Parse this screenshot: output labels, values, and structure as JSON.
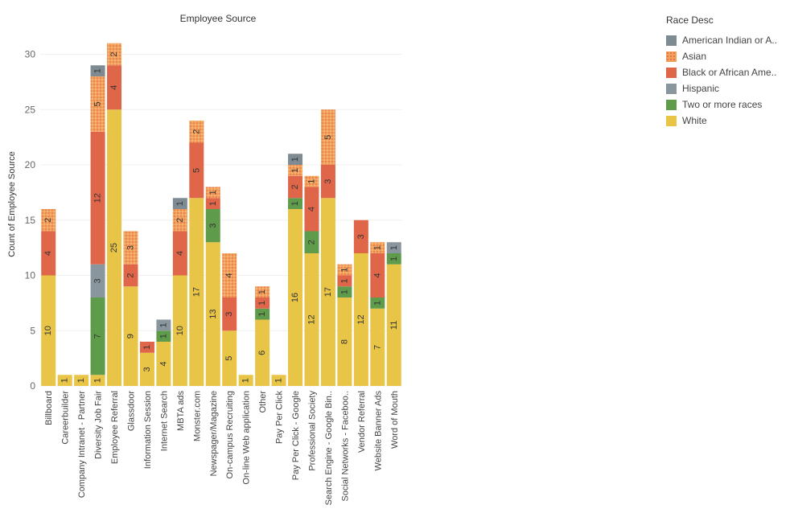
{
  "chart_data": {
    "type": "bar",
    "stacked": true,
    "title": "Employee Source",
    "ylabel": "Count of Employee Source",
    "xlabel": "",
    "ylim": [
      0,
      32
    ],
    "yticks": [
      0,
      5,
      10,
      15,
      20,
      25,
      30
    ],
    "grid": true,
    "legend_title": "Race Desc",
    "legend_position": "top-right",
    "categories": [
      "Billboard",
      "Careerbuilder",
      "Company Intranet - Partner",
      "Diversity Job Fair",
      "Employee Referral",
      "Glassdoor",
      "Information Session",
      "Internet Search",
      "MBTA ads",
      "Monster.com",
      "Newspager/Magazine",
      "On-campus Recruiting",
      "On-line Web application",
      "Other",
      "Pay Per Click",
      "Pay Per Click - Google",
      "Professional Society",
      "Search Engine - Google Bin..",
      "Social Networks - Faceboo..",
      "Vendor Referral",
      "Website Banner Ads",
      "Word of Mouth"
    ],
    "series": [
      {
        "name": "White",
        "color": "#e8c547",
        "values": [
          10,
          1,
          1,
          1,
          25,
          9,
          3,
          4,
          10,
          17,
          13,
          5,
          1,
          6,
          1,
          16,
          12,
          17,
          8,
          12,
          7,
          11
        ]
      },
      {
        "name": "Two or more races",
        "color": "#5e9c4b",
        "values": [
          0,
          0,
          0,
          7,
          0,
          0,
          0,
          1,
          0,
          0,
          3,
          0,
          0,
          1,
          0,
          1,
          2,
          0,
          1,
          0,
          1,
          1
        ]
      },
      {
        "name": "Hispanic",
        "color": "#8a969e",
        "values": [
          0,
          0,
          0,
          3,
          0,
          0,
          0,
          1,
          0,
          0,
          0,
          0,
          0,
          0,
          0,
          0,
          0,
          0,
          0,
          0,
          0,
          1
        ]
      },
      {
        "name": "Black or African Ame..",
        "color": "#e0664a",
        "values": [
          4,
          0,
          0,
          12,
          4,
          2,
          1,
          0,
          4,
          5,
          1,
          3,
          0,
          1,
          0,
          2,
          4,
          3,
          1,
          3,
          4,
          0
        ]
      },
      {
        "name": "Asian",
        "color": "#f2a05a",
        "values": [
          2,
          0,
          0,
          5,
          2,
          3,
          0,
          0,
          2,
          2,
          1,
          4,
          0,
          1,
          0,
          1,
          1,
          5,
          1,
          0,
          1,
          0
        ]
      },
      {
        "name": "American Indian or A..",
        "color": "#7f8b93",
        "values": [
          0,
          0,
          0,
          1,
          0,
          0,
          0,
          0,
          1,
          0,
          0,
          0,
          0,
          0,
          0,
          1,
          0,
          0,
          0,
          0,
          0,
          0
        ]
      }
    ],
    "legend_order": [
      "American Indian or A..",
      "Asian",
      "Black or African Ame..",
      "Hispanic",
      "Two or more races",
      "White"
    ],
    "patterned_series": [
      "Asian"
    ]
  }
}
